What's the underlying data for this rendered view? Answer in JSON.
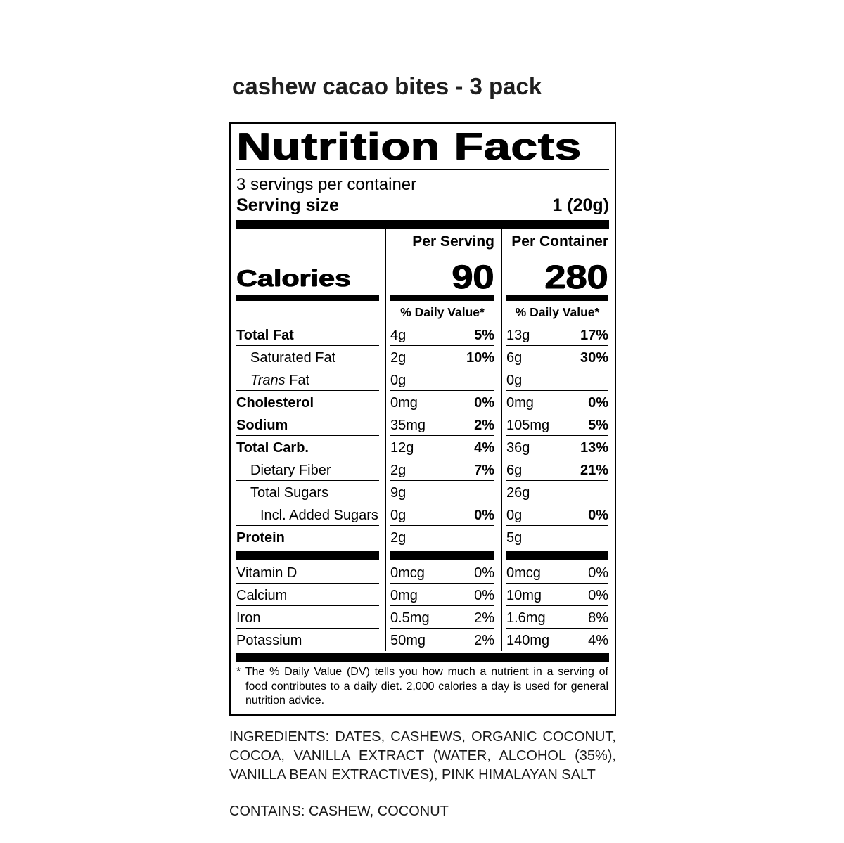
{
  "title": "cashew cacao bites - 3 pack",
  "colors": {
    "text": "#000000",
    "background": "#ffffff"
  },
  "label": {
    "heading": "Nutrition Facts",
    "servings_per_container": "3 servings per container",
    "serving_size_label": "Serving size",
    "serving_size_value": "1 (20g)",
    "calories_label": "Calories",
    "columns": [
      {
        "header": "Per Serving",
        "calories": "90",
        "dv_header": "% Daily Value*"
      },
      {
        "header": "Per Container",
        "calories": "280",
        "dv_header": "% Daily Value*"
      }
    ],
    "nutrients": [
      {
        "name": "Total Fat",
        "bold": true,
        "indent": 0,
        "ps_amount": "4g",
        "ps_dv": "5%",
        "pc_amount": "13g",
        "pc_dv": "17%"
      },
      {
        "name": "Saturated Fat",
        "bold": false,
        "indent": 1,
        "ps_amount": "2g",
        "ps_dv": "10%",
        "pc_amount": "6g",
        "pc_dv": "30%"
      },
      {
        "name": " Fat",
        "prefix_italic": "Trans",
        "bold": false,
        "indent": 1,
        "ps_amount": "0g",
        "ps_dv": "",
        "pc_amount": "0g",
        "pc_dv": ""
      },
      {
        "name": "Cholesterol",
        "bold": true,
        "indent": 0,
        "ps_amount": "0mg",
        "ps_dv": "0%",
        "pc_amount": "0mg",
        "pc_dv": "0%"
      },
      {
        "name": "Sodium",
        "bold": true,
        "indent": 0,
        "ps_amount": "35mg",
        "ps_dv": "2%",
        "pc_amount": "105mg",
        "pc_dv": "5%"
      },
      {
        "name": "Total Carb.",
        "bold": true,
        "indent": 0,
        "ps_amount": "12g",
        "ps_dv": "4%",
        "pc_amount": "36g",
        "pc_dv": "13%"
      },
      {
        "name": "Dietary Fiber",
        "bold": false,
        "indent": 1,
        "ps_amount": "2g",
        "ps_dv": "7%",
        "pc_amount": "6g",
        "pc_dv": "21%"
      },
      {
        "name": "Total Sugars",
        "bold": false,
        "indent": 1,
        "sep_indent": true,
        "ps_amount": "9g",
        "ps_dv": "",
        "pc_amount": "26g",
        "pc_dv": ""
      },
      {
        "name": "Incl. Added Sugars",
        "bold": false,
        "indent": 2,
        "ps_amount": "0g",
        "ps_dv": "0%",
        "pc_amount": "0g",
        "pc_dv": "0%"
      },
      {
        "name": "Protein",
        "bold": true,
        "indent": 0,
        "no_sep": true,
        "ps_amount": "2g",
        "ps_dv": "",
        "pc_amount": "5g",
        "pc_dv": ""
      }
    ],
    "vitamins": [
      {
        "name": "Vitamin D",
        "ps_amount": "0mcg",
        "ps_dv": "0%",
        "pc_amount": "0mcg",
        "pc_dv": "0%"
      },
      {
        "name": "Calcium",
        "ps_amount": "0mg",
        "ps_dv": "0%",
        "pc_amount": "10mg",
        "pc_dv": "0%"
      },
      {
        "name": "Iron",
        "ps_amount": "0.5mg",
        "ps_dv": "2%",
        "pc_amount": "1.6mg",
        "pc_dv": "8%"
      },
      {
        "name": "Potassium",
        "no_sep": true,
        "ps_amount": "50mg",
        "ps_dv": "2%",
        "pc_amount": "140mg",
        "pc_dv": "4%"
      }
    ],
    "footnote": {
      "marker": "*",
      "text": "The % Daily Value (DV) tells you how much a nutrient in a serving of food contributes to a daily diet. 2,000 calories a day is used for general nutrition advice."
    }
  },
  "ingredients": "INGREDIENTS: DATES, CASHEWS, ORGANIC COCONUT, COCOA, VANILLA EXTRACT (WATER, ALCOHOL (35%), VANILLA BEAN EXTRACTIVES), PINK HIMALAYAN SALT",
  "contains": "CONTAINS: CASHEW, COCONUT"
}
